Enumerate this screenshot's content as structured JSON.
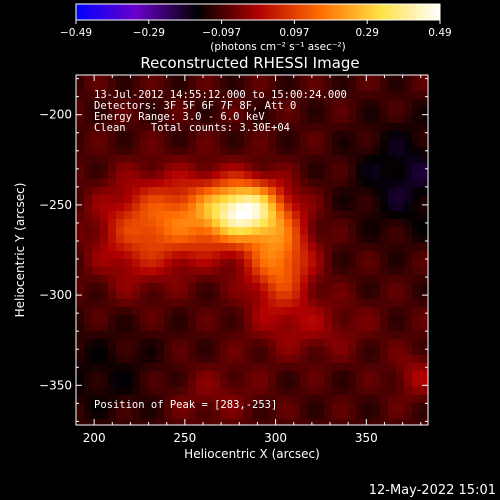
{
  "chart_data": {
    "type": "heatmap",
    "title": "Reconstructed RHESSI Image",
    "xlabel": "Heliocentric X (arcsec)",
    "ylabel": "Heliocentric Y (arcsec)",
    "xlim": [
      190,
      384
    ],
    "ylim": [
      -372,
      -178
    ],
    "x_ticks": [
      200,
      250,
      300,
      350
    ],
    "y_ticks": [
      -200,
      -250,
      -300,
      -350
    ],
    "colorbar": {
      "min": -0.49,
      "max": 0.49,
      "tick_labels": [
        "-0.49",
        "-0.29",
        "-0.097",
        "0.097",
        "0.29",
        "0.49"
      ],
      "units_label": "(photons cm⁻² s⁻¹ asec⁻²)",
      "colors": [
        "#0000ff",
        "#6a00c8",
        "#000000",
        "#b00000",
        "#ff6a00",
        "#ffe040",
        "#ffffff"
      ]
    },
    "annotations": {
      "time_range": "13-Jul-2012 14:55:12.000 to 15:00:24.000",
      "detectors": "Detectors: 3F 5F 6F 7F 8F, Att 0",
      "energy": "Energy Range: 3.0 - 6.0 keV",
      "method": "Clean    Total counts: 3.30E+04",
      "peak": "Position of Peak = [283,-253]"
    },
    "peak": {
      "x": 283,
      "y": -253,
      "value": 0.49
    },
    "sources": [
      {
        "x": 283,
        "y": -253,
        "sx": 14,
        "sy": 11,
        "amp": 0.49
      },
      {
        "x": 252,
        "y": -258,
        "sx": 22,
        "sy": 16,
        "amp": 0.24
      },
      {
        "x": 302,
        "y": -280,
        "sx": 12,
        "sy": 18,
        "amp": 0.28
      },
      {
        "x": 222,
        "y": -268,
        "sx": 16,
        "sy": 20,
        "amp": 0.12
      },
      {
        "x": 318,
        "y": -318,
        "sx": 22,
        "sy": 12,
        "amp": 0.07
      },
      {
        "x": 378,
        "y": -345,
        "sx": 9,
        "sy": 9,
        "amp": 0.08
      },
      {
        "x": 372,
        "y": -235,
        "sx": 20,
        "sy": 22,
        "amp": -0.09
      },
      {
        "x": 205,
        "y": -345,
        "sx": 25,
        "sy": 20,
        "amp": -0.05
      },
      {
        "x": 265,
        "y": -355,
        "sx": 18,
        "sy": 12,
        "amp": 0.05
      }
    ]
  },
  "footer": {
    "date": "12-May-2022 15:01"
  }
}
